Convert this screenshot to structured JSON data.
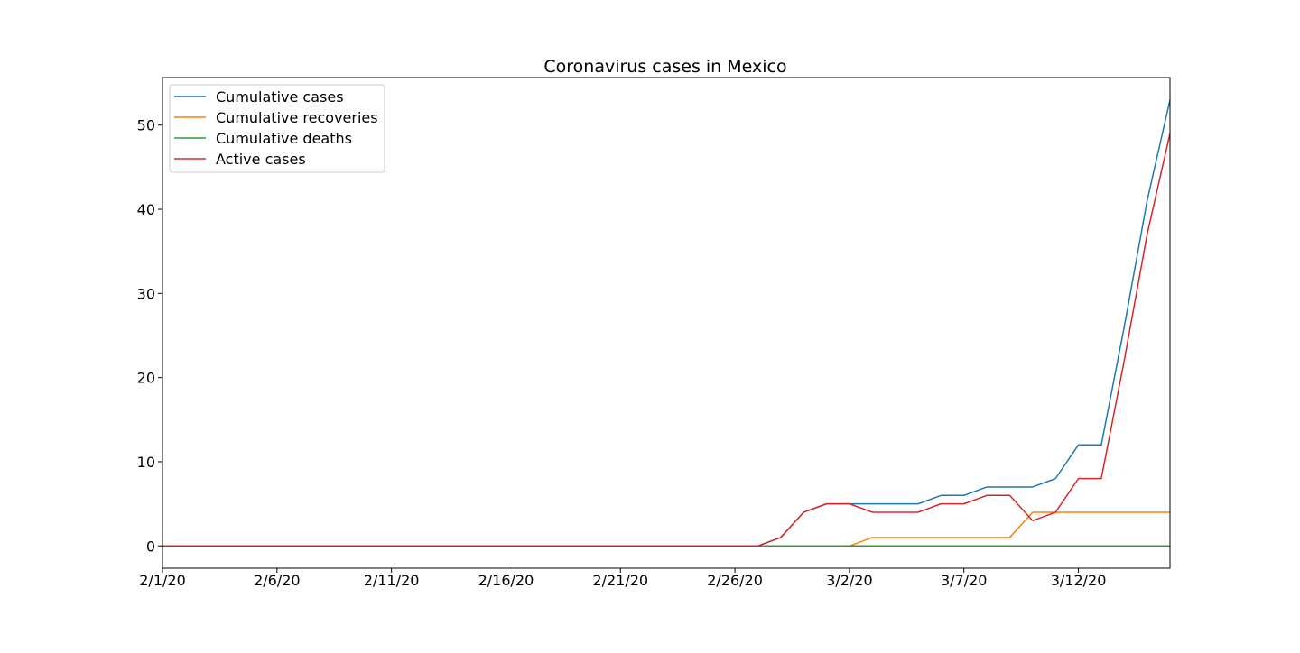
{
  "chart_data": {
    "type": "line",
    "title": "Coronavirus cases in Mexico",
    "xlabel": "",
    "ylabel": "",
    "x": [
      "2/1/20",
      "2/2/20",
      "2/3/20",
      "2/4/20",
      "2/5/20",
      "2/6/20",
      "2/7/20",
      "2/8/20",
      "2/9/20",
      "2/10/20",
      "2/11/20",
      "2/12/20",
      "2/13/20",
      "2/14/20",
      "2/15/20",
      "2/16/20",
      "2/17/20",
      "2/18/20",
      "2/19/20",
      "2/20/20",
      "2/21/20",
      "2/22/20",
      "2/23/20",
      "2/24/20",
      "2/25/20",
      "2/26/20",
      "2/27/20",
      "2/28/20",
      "2/29/20",
      "3/1/20",
      "3/2/20",
      "3/3/20",
      "3/4/20",
      "3/5/20",
      "3/6/20",
      "3/7/20",
      "3/8/20",
      "3/9/20",
      "3/10/20",
      "3/11/20",
      "3/12/20",
      "3/13/20",
      "3/14/20",
      "3/15/20",
      "3/16/20"
    ],
    "xticks": [
      "2/1/20",
      "2/6/20",
      "2/11/20",
      "2/16/20",
      "2/21/20",
      "2/26/20",
      "3/2/20",
      "3/7/20",
      "3/12/20"
    ],
    "yticks": [
      0,
      10,
      20,
      30,
      40,
      50
    ],
    "ylim": [
      -2.65,
      55.65
    ],
    "grid": false,
    "legend_position": "upper-left",
    "series": [
      {
        "name": "Cumulative cases",
        "color": "#1f77b4",
        "values": [
          0,
          0,
          0,
          0,
          0,
          0,
          0,
          0,
          0,
          0,
          0,
          0,
          0,
          0,
          0,
          0,
          0,
          0,
          0,
          0,
          0,
          0,
          0,
          0,
          0,
          0,
          0,
          1,
          4,
          5,
          5,
          5,
          5,
          5,
          6,
          6,
          7,
          7,
          7,
          8,
          12,
          12,
          26,
          41,
          53
        ]
      },
      {
        "name": "Cumulative recoveries",
        "color": "#ff7f0e",
        "values": [
          0,
          0,
          0,
          0,
          0,
          0,
          0,
          0,
          0,
          0,
          0,
          0,
          0,
          0,
          0,
          0,
          0,
          0,
          0,
          0,
          0,
          0,
          0,
          0,
          0,
          0,
          0,
          0,
          0,
          0,
          0,
          1,
          1,
          1,
          1,
          1,
          1,
          1,
          4,
          4,
          4,
          4,
          4,
          4,
          4
        ]
      },
      {
        "name": "Cumulative deaths",
        "color": "#2ca02c",
        "values": [
          0,
          0,
          0,
          0,
          0,
          0,
          0,
          0,
          0,
          0,
          0,
          0,
          0,
          0,
          0,
          0,
          0,
          0,
          0,
          0,
          0,
          0,
          0,
          0,
          0,
          0,
          0,
          0,
          0,
          0,
          0,
          0,
          0,
          0,
          0,
          0,
          0,
          0,
          0,
          0,
          0,
          0,
          0,
          0,
          0
        ]
      },
      {
        "name": "Active cases",
        "color": "#d62728",
        "values": [
          0,
          0,
          0,
          0,
          0,
          0,
          0,
          0,
          0,
          0,
          0,
          0,
          0,
          0,
          0,
          0,
          0,
          0,
          0,
          0,
          0,
          0,
          0,
          0,
          0,
          0,
          0,
          1,
          4,
          5,
          5,
          4,
          4,
          4,
          5,
          5,
          6,
          6,
          3,
          4,
          8,
          8,
          22,
          37,
          49
        ]
      }
    ]
  }
}
